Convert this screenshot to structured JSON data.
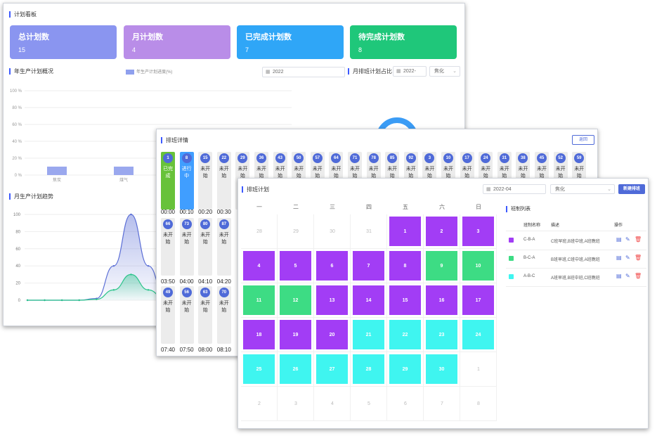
{
  "dashboard": {
    "title": "计划看板",
    "cards": [
      {
        "label": "总计划数",
        "value": "15",
        "color": "#8a95f0"
      },
      {
        "label": "月计划数",
        "value": "4",
        "color": "#b98de8"
      },
      {
        "label": "已完成计划数",
        "value": "7",
        "color": "#2fa6f7"
      },
      {
        "label": "待完成计划数",
        "value": "8",
        "color": "#1fc77a"
      }
    ],
    "annual_title": "年生产计划概况",
    "annual_legend": "年生产计划进度(%)",
    "annual_year": "2022",
    "monthly_title": "月排班计划占比",
    "monthly_month": "2022-",
    "monthly_select": "焦化",
    "trend_title": "月生产计划趋势"
  },
  "chart_data": [
    {
      "type": "bar",
      "ylabel_ticks": [
        "100 %",
        "80 %",
        "60 %",
        "40 %",
        "20 %",
        "0 %"
      ],
      "categories": [
        "焦炭",
        "煤气"
      ],
      "values": [
        10,
        10
      ],
      "ylim": [
        0,
        100
      ],
      "legend": "年生产计划进度(%)",
      "grid": true
    },
    {
      "type": "area",
      "y_ticks": [
        "100",
        "80",
        "60",
        "40",
        "20",
        "0"
      ],
      "ylim": [
        0,
        100
      ],
      "x": [
        0,
        1,
        2,
        3,
        4,
        5,
        6,
        7,
        8,
        9,
        10
      ],
      "series": [
        {
          "values": [
            0,
            0,
            0,
            0,
            2,
            40,
            100,
            40,
            2,
            0,
            0
          ],
          "color": "#5c6fd6"
        },
        {
          "values": [
            0,
            0,
            0,
            0,
            1,
            12,
            30,
            12,
            1,
            0,
            0
          ],
          "color": "#2bc48a"
        }
      ],
      "grid": true
    }
  ],
  "progress": {
    "title": "排班详情",
    "back_label": "返回",
    "row1": [
      {
        "n": "1",
        "s": "已完成",
        "c": "#67c23a"
      },
      {
        "n": "8",
        "s": "进行中",
        "c": "#409eff"
      },
      {
        "n": "15",
        "s": "未开始",
        "c": ""
      },
      {
        "n": "22",
        "s": "未开始",
        "c": ""
      },
      {
        "n": "29",
        "s": "未开始",
        "c": ""
      },
      {
        "n": "36",
        "s": "未开始",
        "c": ""
      },
      {
        "n": "43",
        "s": "未开始",
        "c": ""
      },
      {
        "n": "50",
        "s": "未开始",
        "c": ""
      },
      {
        "n": "57",
        "s": "未开始",
        "c": ""
      },
      {
        "n": "64",
        "s": "未开始",
        "c": ""
      },
      {
        "n": "71",
        "s": "未开始",
        "c": ""
      },
      {
        "n": "78",
        "s": "未开始",
        "c": ""
      },
      {
        "n": "85",
        "s": "未开始",
        "c": ""
      },
      {
        "n": "92",
        "s": "未开始",
        "c": ""
      },
      {
        "n": "3",
        "s": "未开始",
        "c": ""
      },
      {
        "n": "10",
        "s": "未开始",
        "c": ""
      },
      {
        "n": "17",
        "s": "未开始",
        "c": ""
      },
      {
        "n": "24",
        "s": "未开始",
        "c": ""
      },
      {
        "n": "31",
        "s": "未开始",
        "c": ""
      },
      {
        "n": "38",
        "s": "未开始",
        "c": ""
      },
      {
        "n": "45",
        "s": "未开始",
        "c": ""
      },
      {
        "n": "52",
        "s": "未开始",
        "c": ""
      },
      {
        "n": "59",
        "s": "未开始",
        "c": ""
      }
    ],
    "row1_times": [
      "00:00",
      "00:10",
      "00:20",
      "00:30"
    ],
    "row2": [
      {
        "n": "66",
        "s": "未开始"
      },
      {
        "n": "73",
        "s": "未开始"
      },
      {
        "n": "80",
        "s": "未开始"
      },
      {
        "n": "87",
        "s": "未开始"
      }
    ],
    "row2_times": [
      "03:50",
      "04:00",
      "04:10",
      "04:20"
    ],
    "row3": [
      {
        "n": "49",
        "s": "未开始"
      },
      {
        "n": "56",
        "s": "未开始"
      },
      {
        "n": "63",
        "s": "未开始"
      },
      {
        "n": "70",
        "s": "未开始"
      }
    ],
    "row3_times": [
      "07:40",
      "07:50",
      "08:00",
      "08:10"
    ]
  },
  "schedule": {
    "title": "排班计划",
    "month": "2022-04",
    "select": "焦化",
    "new_button": "新建排班",
    "weekdays": [
      "一",
      "二",
      "三",
      "四",
      "五",
      "六",
      "日"
    ],
    "colors": {
      "A": "#a23df5",
      "B": "#3ddc84",
      "C": "#3ff5f0"
    },
    "weeks": [
      [
        {
          "d": "28",
          "t": ""
        },
        {
          "d": "29",
          "t": ""
        },
        {
          "d": "30",
          "t": ""
        },
        {
          "d": "31",
          "t": ""
        },
        {
          "d": "1",
          "t": "A"
        },
        {
          "d": "2",
          "t": "A"
        },
        {
          "d": "3",
          "t": "A"
        }
      ],
      [
        {
          "d": "4",
          "t": "A"
        },
        {
          "d": "5",
          "t": "A"
        },
        {
          "d": "6",
          "t": "A"
        },
        {
          "d": "7",
          "t": "A"
        },
        {
          "d": "8",
          "t": "A"
        },
        {
          "d": "9",
          "t": "B"
        },
        {
          "d": "10",
          "t": "B"
        }
      ],
      [
        {
          "d": "11",
          "t": "B"
        },
        {
          "d": "12",
          "t": "B"
        },
        {
          "d": "13",
          "t": "A"
        },
        {
          "d": "14",
          "t": "A"
        },
        {
          "d": "15",
          "t": "A"
        },
        {
          "d": "16",
          "t": "A"
        },
        {
          "d": "17",
          "t": "A"
        }
      ],
      [
        {
          "d": "18",
          "t": "A"
        },
        {
          "d": "19",
          "t": "A"
        },
        {
          "d": "20",
          "t": "A"
        },
        {
          "d": "21",
          "t": "C"
        },
        {
          "d": "22",
          "t": "C"
        },
        {
          "d": "23",
          "t": "C"
        },
        {
          "d": "24",
          "t": "C"
        }
      ],
      [
        {
          "d": "25",
          "t": "C"
        },
        {
          "d": "26",
          "t": "C"
        },
        {
          "d": "27",
          "t": "C"
        },
        {
          "d": "28",
          "t": "C"
        },
        {
          "d": "29",
          "t": "C"
        },
        {
          "d": "30",
          "t": "C"
        },
        {
          "d": "1",
          "t": ""
        }
      ],
      [
        {
          "d": "2",
          "t": ""
        },
        {
          "d": "3",
          "t": ""
        },
        {
          "d": "4",
          "t": ""
        },
        {
          "d": "5",
          "t": ""
        },
        {
          "d": "6",
          "t": ""
        },
        {
          "d": "7",
          "t": ""
        },
        {
          "d": "8",
          "t": ""
        }
      ]
    ],
    "list_title": "班制列表",
    "cols": [
      "班制名称",
      "描述",
      "操作"
    ],
    "rows": [
      {
        "name": "C-B-A",
        "desc": "C班早班,B班中班,A班晚班",
        "color": "#a23df5"
      },
      {
        "name": "B-C-A",
        "desc": "B班早班,C班中班,A班晚班",
        "color": "#3ddc84"
      },
      {
        "name": "A-B-C",
        "desc": "A班早班,B班中班,C班晚班",
        "color": "#3ff5f0"
      }
    ]
  }
}
